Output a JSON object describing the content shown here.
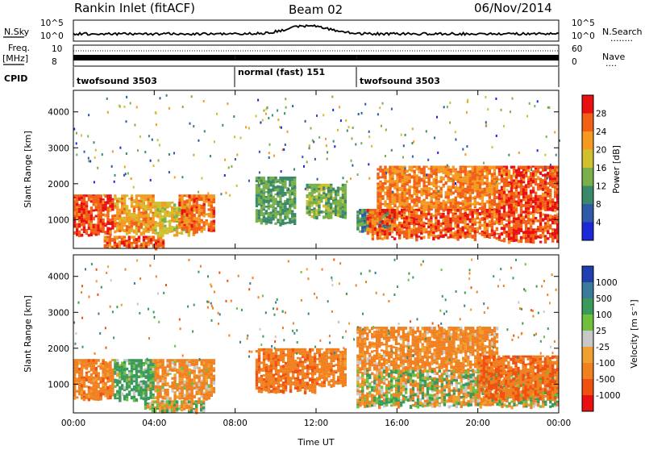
{
  "header": {
    "title": "Rankin Inlet (fitACF)",
    "beam": "Beam 02",
    "date": "06/Nov/2014"
  },
  "strip": {
    "nsky_label": "N.Sky",
    "nsearch_label": "N.Search",
    "nsearch_dots": "........",
    "noise_ticks": [
      "10^5",
      "10^0"
    ],
    "freq_label": "Freq.",
    "freq_unit": "[MHz]",
    "freq_ticks": [
      "10",
      "8"
    ],
    "nave_label": "Nave",
    "nave_dots": "....",
    "nave_ticks": [
      "60",
      "0"
    ],
    "cpid_label": "CPID",
    "cpid_segments": [
      {
        "name": "twofsound",
        "id": "3503",
        "start": 0.0,
        "end": 8.0
      },
      {
        "name": "normal (fast)",
        "id": "151",
        "start": 8.0,
        "end": 14.0
      },
      {
        "name": "twofsound",
        "id": "3503",
        "start": 14.0,
        "end": 24.0
      }
    ]
  },
  "colors": {
    "power": [
      "#1c28d8",
      "#2e5aa8",
      "#3a8a6a",
      "#7ab04a",
      "#d0c030",
      "#f49a20",
      "#f26018",
      "#e81010"
    ],
    "velocity": [
      "#2040b0",
      "#3a7a9a",
      "#3a9a5a",
      "#70c040",
      "#c8c8c8",
      "#f0a030",
      "#f08020",
      "#f05010",
      "#e81010"
    ]
  },
  "chart_data": [
    {
      "type": "heatmap",
      "panel": "power",
      "xlabel": "",
      "ylabel": "Slant Range [km]",
      "xlim": [
        0,
        24
      ],
      "ylim": [
        200,
        4600
      ],
      "yticks": [
        "1000",
        "2000",
        "3000",
        "4000"
      ],
      "colorbar": {
        "label": "Power [dB]",
        "ticks": [
          "4",
          "8",
          "12",
          "16",
          "20",
          "24",
          "28"
        ],
        "range": [
          0,
          32
        ]
      },
      "regions": [
        {
          "x": [
            0.0,
            2.0
          ],
          "y": [
            600,
            1700
          ],
          "value": 27
        },
        {
          "x": [
            2.0,
            4.0
          ],
          "y": [
            650,
            1700
          ],
          "value": 22
        },
        {
          "x": [
            1.5,
            4.5
          ],
          "y": [
            250,
            550
          ],
          "value": 26
        },
        {
          "x": [
            4.0,
            6.0
          ],
          "y": [
            600,
            1500
          ],
          "value": 18
        },
        {
          "x": [
            5.2,
            7.0
          ],
          "y": [
            700,
            1700
          ],
          "value": 25
        },
        {
          "x": [
            9.0,
            11.0
          ],
          "y": [
            900,
            2200
          ],
          "value": 12
        },
        {
          "x": [
            11.5,
            13.5
          ],
          "y": [
            1100,
            2000
          ],
          "value": 14
        },
        {
          "x": [
            14.0,
            16.0
          ],
          "y": [
            700,
            1300
          ],
          "value": 10
        },
        {
          "x": [
            15.0,
            21.0
          ],
          "y": [
            1300,
            2500
          ],
          "value": 24
        },
        {
          "x": [
            14.5,
            21.0
          ],
          "y": [
            500,
            1300
          ],
          "value": 26
        },
        {
          "x": [
            21.0,
            24.0
          ],
          "y": [
            400,
            2500
          ],
          "value": 27
        }
      ]
    },
    {
      "type": "heatmap",
      "panel": "velocity",
      "xlabel": "Time UT",
      "ylabel": "Slant Range [km]",
      "xlim": [
        0,
        24
      ],
      "ylim": [
        200,
        4600
      ],
      "xticks": [
        "00:00",
        "04:00",
        "08:00",
        "12:00",
        "16:00",
        "20:00",
        "00:00"
      ],
      "yticks": [
        "1000",
        "2000",
        "3000",
        "4000"
      ],
      "colorbar": {
        "label": "Velocity [m s⁻¹]",
        "ticks": [
          "1000",
          "500",
          "100",
          "25",
          "-25",
          "-100",
          "-500",
          "-1000"
        ]
      },
      "regions": [
        {
          "x": [
            0.0,
            2.0
          ],
          "y": [
            600,
            1700
          ],
          "value": -300
        },
        {
          "x": [
            2.0,
            4.0
          ],
          "y": [
            600,
            1700
          ],
          "value": 200
        },
        {
          "x": [
            4.0,
            7.0
          ],
          "y": [
            600,
            1700
          ],
          "value": -200
        },
        {
          "x": [
            3.5,
            6.5
          ],
          "y": [
            250,
            550
          ],
          "value": 0
        },
        {
          "x": [
            9.0,
            12.0
          ],
          "y": [
            800,
            2000
          ],
          "value": -400
        },
        {
          "x": [
            12.0,
            13.5
          ],
          "y": [
            1000,
            2000
          ],
          "value": -300
        },
        {
          "x": [
            14.0,
            21.0
          ],
          "y": [
            1400,
            2600
          ],
          "value": -250
        },
        {
          "x": [
            14.0,
            24.0
          ],
          "y": [
            400,
            1400
          ],
          "value": 0
        },
        {
          "x": [
            20.0,
            24.0
          ],
          "y": [
            600,
            1800
          ],
          "value": -500
        }
      ]
    }
  ]
}
